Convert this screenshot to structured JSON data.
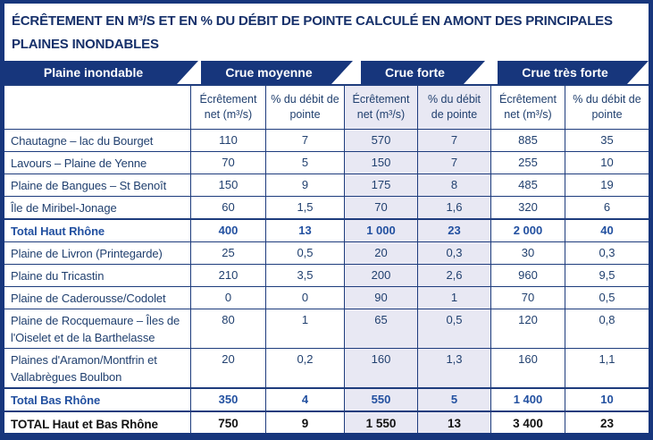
{
  "title": "ÉCRÊTEMENT EN M³/S ET EN % DU DÉBIT DE POINTE CALCULÉ EN AMONT DES PRINCIPALES PLAINES INONDABLES",
  "colors": {
    "navy": "#17367c",
    "border": "#1e3c7d",
    "title_text": "#16306a",
    "body_text": "#21406f",
    "total_text": "#2250a0",
    "crue_forte_shade": "#e8e8f3"
  },
  "table": {
    "group_headers": [
      "Plaine inondable",
      "Crue moyenne",
      "Crue forte",
      "Crue très forte"
    ],
    "sub_header_ecretement": "Écrêtement net (m³/s)",
    "sub_header_pct": "% du débit de pointe",
    "rows": [
      {
        "label": "Chautagne – lac du Bourget",
        "values": [
          "110",
          "7",
          "570",
          "7",
          "885",
          "35"
        ],
        "style": "normal"
      },
      {
        "label": "Lavours – Plaine de Yenne",
        "values": [
          "70",
          "5",
          "150",
          "7",
          "255",
          "10"
        ],
        "style": "normal"
      },
      {
        "label": "Plaine de Bangues – St Benoît",
        "values": [
          "150",
          "9",
          "175",
          "8",
          "485",
          "19"
        ],
        "style": "normal"
      },
      {
        "label": "Île de Miribel-Jonage",
        "values": [
          "60",
          "1,5",
          "70",
          "1,6",
          "320",
          "6"
        ],
        "style": "normal"
      },
      {
        "label": "Total Haut Rhône",
        "values": [
          "400",
          "13",
          "1 000",
          "23",
          "2 000",
          "40"
        ],
        "style": "total"
      },
      {
        "label": "Plaine de Livron (Printegarde)",
        "values": [
          "25",
          "0,5",
          "20",
          "0,3",
          "30",
          "0,3"
        ],
        "style": "normal"
      },
      {
        "label": "Plaine du Tricastin",
        "values": [
          "210",
          "3,5",
          "200",
          "2,6",
          "960",
          "9,5"
        ],
        "style": "normal"
      },
      {
        "label": "Plaine de Caderousse/Codolet",
        "values": [
          "0",
          "0",
          "90",
          "1",
          "70",
          "0,5"
        ],
        "style": "normal"
      },
      {
        "label": "Plaine de Rocquemaure – Îles de l'Oiselet et de la Barthelasse",
        "values": [
          "80",
          "1",
          "65",
          "0,5",
          "120",
          "0,8"
        ],
        "style": "normal"
      },
      {
        "label": "Plaines d'Aramon/Montfrin et Vallabrègues Boulbon",
        "values": [
          "20",
          "0,2",
          "160",
          "1,3",
          "160",
          "1,1"
        ],
        "style": "normal"
      },
      {
        "label": "Total Bas Rhône",
        "values": [
          "350",
          "4",
          "550",
          "5",
          "1 400",
          "10"
        ],
        "style": "total"
      },
      {
        "label": "TOTAL Haut et Bas Rhône",
        "values": [
          "750",
          "9",
          "1 550",
          "13",
          "3 400",
          "23"
        ],
        "style": "grand"
      }
    ]
  }
}
